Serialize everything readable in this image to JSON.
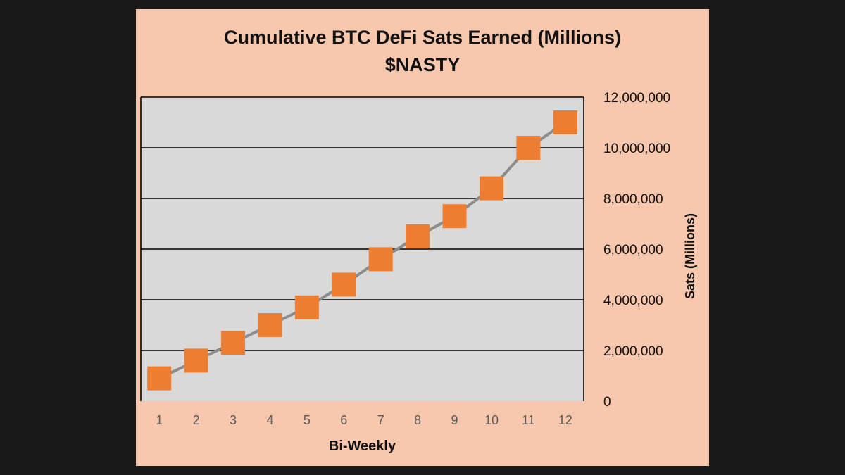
{
  "chart_data": {
    "type": "line",
    "title": "Cumulative BTC DeFi Sats Earned (Millions)",
    "subtitle": "$NASTY",
    "xlabel": "Bi-Weekly",
    "ylabel": "Sats (Millions)",
    "categories": [
      "1",
      "2",
      "3",
      "4",
      "5",
      "6",
      "7",
      "8",
      "9",
      "10",
      "11",
      "12"
    ],
    "values": [
      900000,
      1600000,
      2300000,
      3000000,
      3700000,
      4600000,
      5600000,
      6500000,
      7300000,
      8400000,
      10000000,
      11000000
    ],
    "ylim": [
      0,
      12000000
    ],
    "yticks": [
      "0",
      "2,000,000",
      "4,000,000",
      "6,000,000",
      "8,000,000",
      "10,000,000",
      "12,000,000"
    ],
    "y_axis_side": "right",
    "grid": true,
    "legend": "none",
    "colors": {
      "panel_background": "#f7c8ad",
      "plot_background": "#d9d9d9",
      "line": "#8c8c8c",
      "marker": "#ed7d31",
      "gridline": "#000000"
    }
  }
}
